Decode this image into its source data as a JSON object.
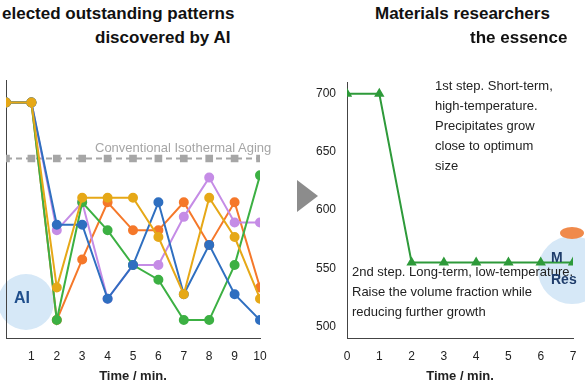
{
  "chart_data": [
    {
      "type": "line",
      "title": [
        "elected outstanding patterns",
        "discovered by AI"
      ],
      "x_label": "Time / min.",
      "x": [
        0,
        1,
        2,
        3,
        4,
        5,
        6,
        7,
        8,
        9,
        10
      ],
      "xlim": [
        0,
        10
      ],
      "xticks": [
        1,
        2,
        3,
        4,
        5,
        6,
        7,
        8,
        9,
        10
      ],
      "ylim": [
        490,
        720
      ],
      "tick_labels": "x",
      "grid": false,
      "marker": "circle",
      "series": [
        {
          "name": "Conventional Isothermal Aging",
          "color": "#a6a6a6",
          "line_style": "dashed",
          "marker": "square",
          "values": [
            650,
            650,
            650,
            650,
            650,
            650,
            650,
            650,
            650,
            650,
            650
          ]
        },
        {
          "color": "#e6a817",
          "values": [
            700,
            700,
            535,
            615,
            615,
            615,
            580,
            529,
            615,
            580,
            525
          ]
        },
        {
          "color": "#2f6fc0",
          "values": [
            700,
            700,
            591,
            591,
            525,
            555,
            611,
            529,
            573,
            529,
            506
          ]
        },
        {
          "color": "#3cb043",
          "values": [
            700,
            700,
            506,
            611,
            586,
            555,
            542,
            506,
            506,
            555,
            635
          ]
        },
        {
          "color": "#c58ce6",
          "values": [
            700,
            700,
            586,
            611,
            525,
            555,
            555,
            598,
            633,
            593,
            593
          ]
        },
        {
          "color": "#f5782a",
          "values": [
            700,
            700,
            506,
            560,
            611,
            586,
            586,
            611,
            573,
            611,
            535
          ]
        }
      ],
      "annotations": [
        [
          "AI"
        ]
      ]
    },
    {
      "type": "line",
      "title": [
        "Materials researchers",
        "the essence"
      ],
      "x_label": "Time / min.",
      "x": [
        0,
        1,
        2,
        3,
        4,
        5,
        6,
        7
      ],
      "xlim": [
        0,
        7
      ],
      "xticks": [
        0,
        1,
        2,
        3,
        4,
        5,
        6,
        7
      ],
      "ylim": [
        490,
        710
      ],
      "yticks": [
        500,
        550,
        600,
        650,
        700
      ],
      "grid": false,
      "series": [
        {
          "color": "#2e9a3a",
          "marker": "triangle",
          "values": [
            700,
            700,
            555,
            555,
            555,
            555,
            555,
            555
          ]
        }
      ],
      "annotations": [
        [
          "1st step. Short-term,",
          "high-temperature.",
          "Precipitates grow",
          "close to optimum",
          "size"
        ],
        [
          "2nd step. Long-term, low-temperature.",
          "Raise the volume fraction while",
          "reducing further growth"
        ],
        [
          "M",
          "Res"
        ]
      ]
    }
  ]
}
